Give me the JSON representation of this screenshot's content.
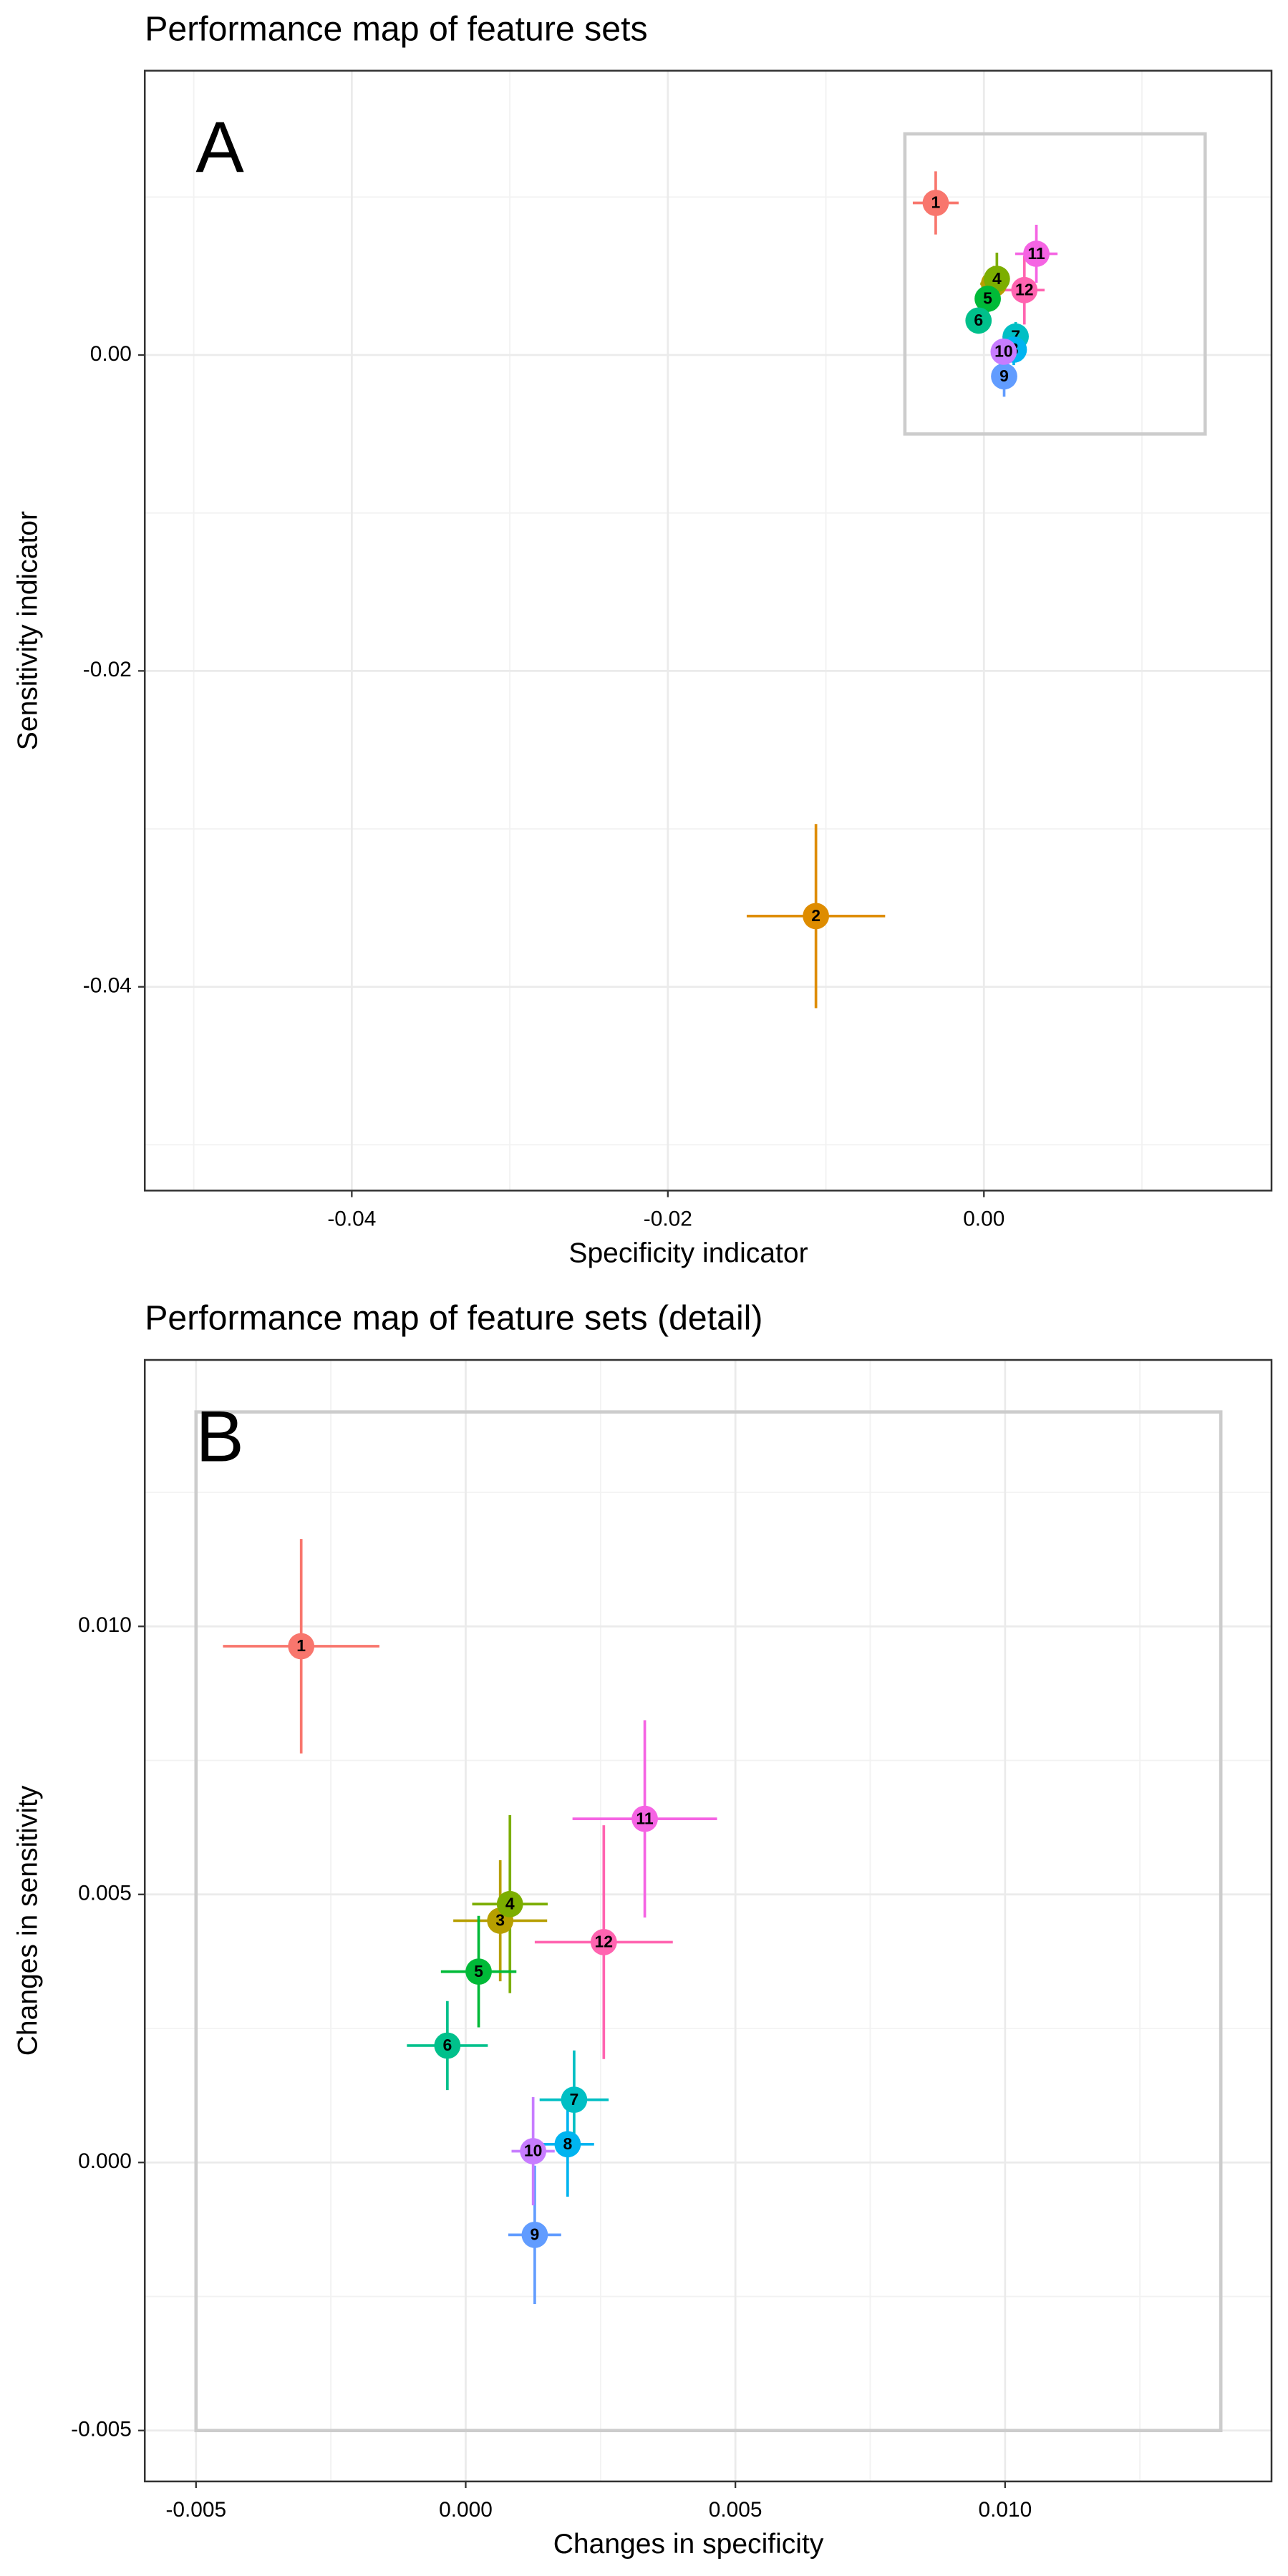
{
  "chart_data": [
    {
      "type": "scatter",
      "title": "Performance map of feature sets",
      "panel_label": "A",
      "x_label": "Specificity indicator",
      "y_label": "Sensitivity indicator",
      "xlim": [
        -0.0531,
        0.0182
      ],
      "ylim": [
        -0.0529,
        0.018
      ],
      "xticks": [
        -0.04,
        -0.02,
        {
          "value": 0,
          "label": "0.00"
        }
      ],
      "yticks": [
        {
          "value": 0,
          "label": "0.00"
        },
        -0.02,
        -0.04
      ],
      "grid": true,
      "minor_grid": true,
      "highlight_box": {
        "xlim": [
          -0.005,
          0.014
        ],
        "ylim": [
          -0.005,
          0.014
        ],
        "color": "#cccccc"
      },
      "labels": [
        "1",
        "2",
        "3",
        "4",
        "5",
        "6",
        "7",
        "8",
        "9",
        "10",
        "11",
        "12"
      ],
      "x": [
        -0.00305,
        -0.01063,
        0.00064,
        0.00082,
        0.00024,
        -0.00034,
        0.00201,
        0.00189,
        0.00128,
        0.00125,
        0.00332,
        0.00256
      ],
      "values": [
        0.00963,
        -0.03552,
        0.00451,
        0.00482,
        0.00356,
        0.00218,
        0.00117,
        0.00034,
        -0.00135,
        0.00021,
        0.00641,
        0.00411
      ],
      "xerr": [
        0.00145,
        0.00438,
        0.00087,
        0.0007,
        0.0007,
        0.00075,
        0.00064,
        0.00049,
        0.00049,
        0.0004,
        0.00134,
        0.00128
      ],
      "yerr": [
        0.002,
        0.00583,
        0.00113,
        0.00166,
        0.00104,
        0.00083,
        0.00092,
        0.00098,
        0.00129,
        0.00101,
        0.00184,
        0.00218
      ],
      "colors": [
        "#F8766D",
        "#DE8C00",
        "#B79F00",
        "#7CAE00",
        "#00BA38",
        "#00C08B",
        "#00BFC4",
        "#00B4F0",
        "#619CFF",
        "#C77CFF",
        "#F564E3",
        "#FF64B0"
      ]
    },
    {
      "type": "scatter",
      "title": "Performance map of feature sets (detail)",
      "panel_label": "B",
      "x_label": "Changes in specificity",
      "y_label": "Changes in sensitivity",
      "xlim": [
        -0.00595,
        0.01494
      ],
      "ylim": [
        -0.00595,
        0.01497
      ],
      "xticks": [
        -0.005,
        {
          "value": 0,
          "label": "0.000"
        },
        0.005,
        {
          "value": 0.01,
          "label": "0.010"
        }
      ],
      "yticks": [
        {
          "value": 0.01,
          "label": "0.010"
        },
        0.005,
        {
          "value": 0,
          "label": "0.000"
        },
        -0.005
      ],
      "grid": true,
      "minor_grid": true,
      "highlight_box": {
        "xlim": [
          -0.005,
          0.014
        ],
        "ylim": [
          -0.005,
          0.014
        ],
        "color": "#cccccc"
      },
      "labels": [
        "1",
        "3",
        "4",
        "5",
        "6",
        "7",
        "8",
        "9",
        "10",
        "11",
        "12"
      ],
      "x": [
        -0.00305,
        0.00064,
        0.00082,
        0.00024,
        -0.00034,
        0.00201,
        0.00189,
        0.00128,
        0.00125,
        0.00332,
        0.00256
      ],
      "values": [
        0.00963,
        0.00451,
        0.00482,
        0.00356,
        0.00218,
        0.00117,
        0.00034,
        -0.00135,
        0.00021,
        0.00641,
        0.00411
      ],
      "xerr": [
        0.00145,
        0.00087,
        0.0007,
        0.0007,
        0.00075,
        0.00064,
        0.00049,
        0.00049,
        0.0004,
        0.00134,
        0.00128
      ],
      "yerr": [
        0.002,
        0.00113,
        0.00166,
        0.00104,
        0.00083,
        0.00092,
        0.00098,
        0.00129,
        0.00101,
        0.00184,
        0.00218
      ],
      "colors": [
        "#F8766D",
        "#B79F00",
        "#7CAE00",
        "#00BA38",
        "#00C08B",
        "#00BFC4",
        "#00B4F0",
        "#619CFF",
        "#C77CFF",
        "#F564E3",
        "#FF64B0"
      ]
    }
  ]
}
